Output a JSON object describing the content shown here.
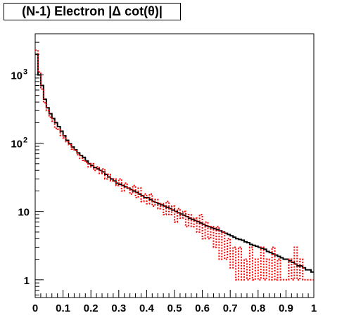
{
  "chart_data": {
    "type": "line",
    "title": "(N-1) Electron |Δ cot(θ)|",
    "xlabel": "",
    "ylabel": "",
    "xlim": [
      0,
      1
    ],
    "ylim": [
      0.55,
      4000
    ],
    "yscale": "log",
    "bin_width": 0.01,
    "x_ticks": [
      "0",
      "0.1",
      "0.2",
      "0.3",
      "0.4",
      "0.5",
      "0.6",
      "0.7",
      "0.8",
      "0.9",
      "1"
    ],
    "y_ticks": [
      {
        "value": 1,
        "label": "1"
      },
      {
        "value": 10,
        "label": "10"
      },
      {
        "value": 100,
        "label": "10",
        "exp": "2"
      },
      {
        "value": 1000,
        "label": "10",
        "exp": "3"
      }
    ],
    "grid": false,
    "series": [
      {
        "color": "#000000",
        "style": "solid",
        "values": [
          2000,
          1000,
          700,
          440,
          330,
          270,
          230,
          200,
          175,
          150,
          128,
          110,
          98,
          88,
          80,
          72,
          66,
          62,
          55,
          50,
          47,
          44,
          42,
          40,
          38,
          35,
          32,
          30,
          28,
          26,
          25,
          24,
          23,
          22,
          21,
          20,
          19,
          18,
          17,
          16,
          16,
          15,
          14,
          13.5,
          13,
          12.5,
          12,
          11.5,
          11,
          10.5,
          10,
          9.6,
          9.2,
          8.8,
          8.4,
          8,
          7.7,
          7.4,
          7.1,
          6.8,
          6.5,
          6.2,
          6,
          5.8,
          5.6,
          5.4,
          5.2,
          5,
          4.8,
          4.6,
          4.4,
          4.2,
          4,
          3.9,
          3.8,
          3.6,
          3.5,
          3.3,
          3.2,
          3.1,
          3,
          2.9,
          2.8,
          2.6,
          2.5,
          2.4,
          2.3,
          2.2,
          2.1,
          2,
          2,
          1.9,
          1.8,
          1.7,
          1.6,
          1.6,
          1.5,
          1.4,
          1.4,
          1.3
        ]
      },
      {
        "color": "#ff0000",
        "style": "dotted",
        "values": [
          2300,
          1100,
          620,
          390,
          300,
          240,
          210,
          165,
          160,
          130,
          120,
          105,
          95,
          82,
          78,
          68,
          60,
          56,
          52,
          45,
          50,
          40,
          45,
          36,
          42,
          30,
          35,
          28,
          30,
          24,
          30,
          20,
          26,
          22,
          18,
          24,
          16,
          22,
          14,
          18,
          13,
          18,
          12,
          15,
          11,
          13,
          9,
          14,
          9,
          12,
          7,
          11,
          8,
          10,
          6,
          9,
          6,
          8,
          5,
          9,
          4,
          7,
          4,
          6,
          3,
          6,
          2,
          5,
          2,
          4,
          1.5,
          3,
          1,
          3,
          1,
          2,
          1,
          3,
          1,
          2,
          1,
          3,
          1,
          2,
          1,
          3,
          1,
          2,
          1,
          1,
          1,
          2,
          1,
          3,
          1,
          2,
          1,
          1,
          1,
          1
        ]
      }
    ]
  }
}
